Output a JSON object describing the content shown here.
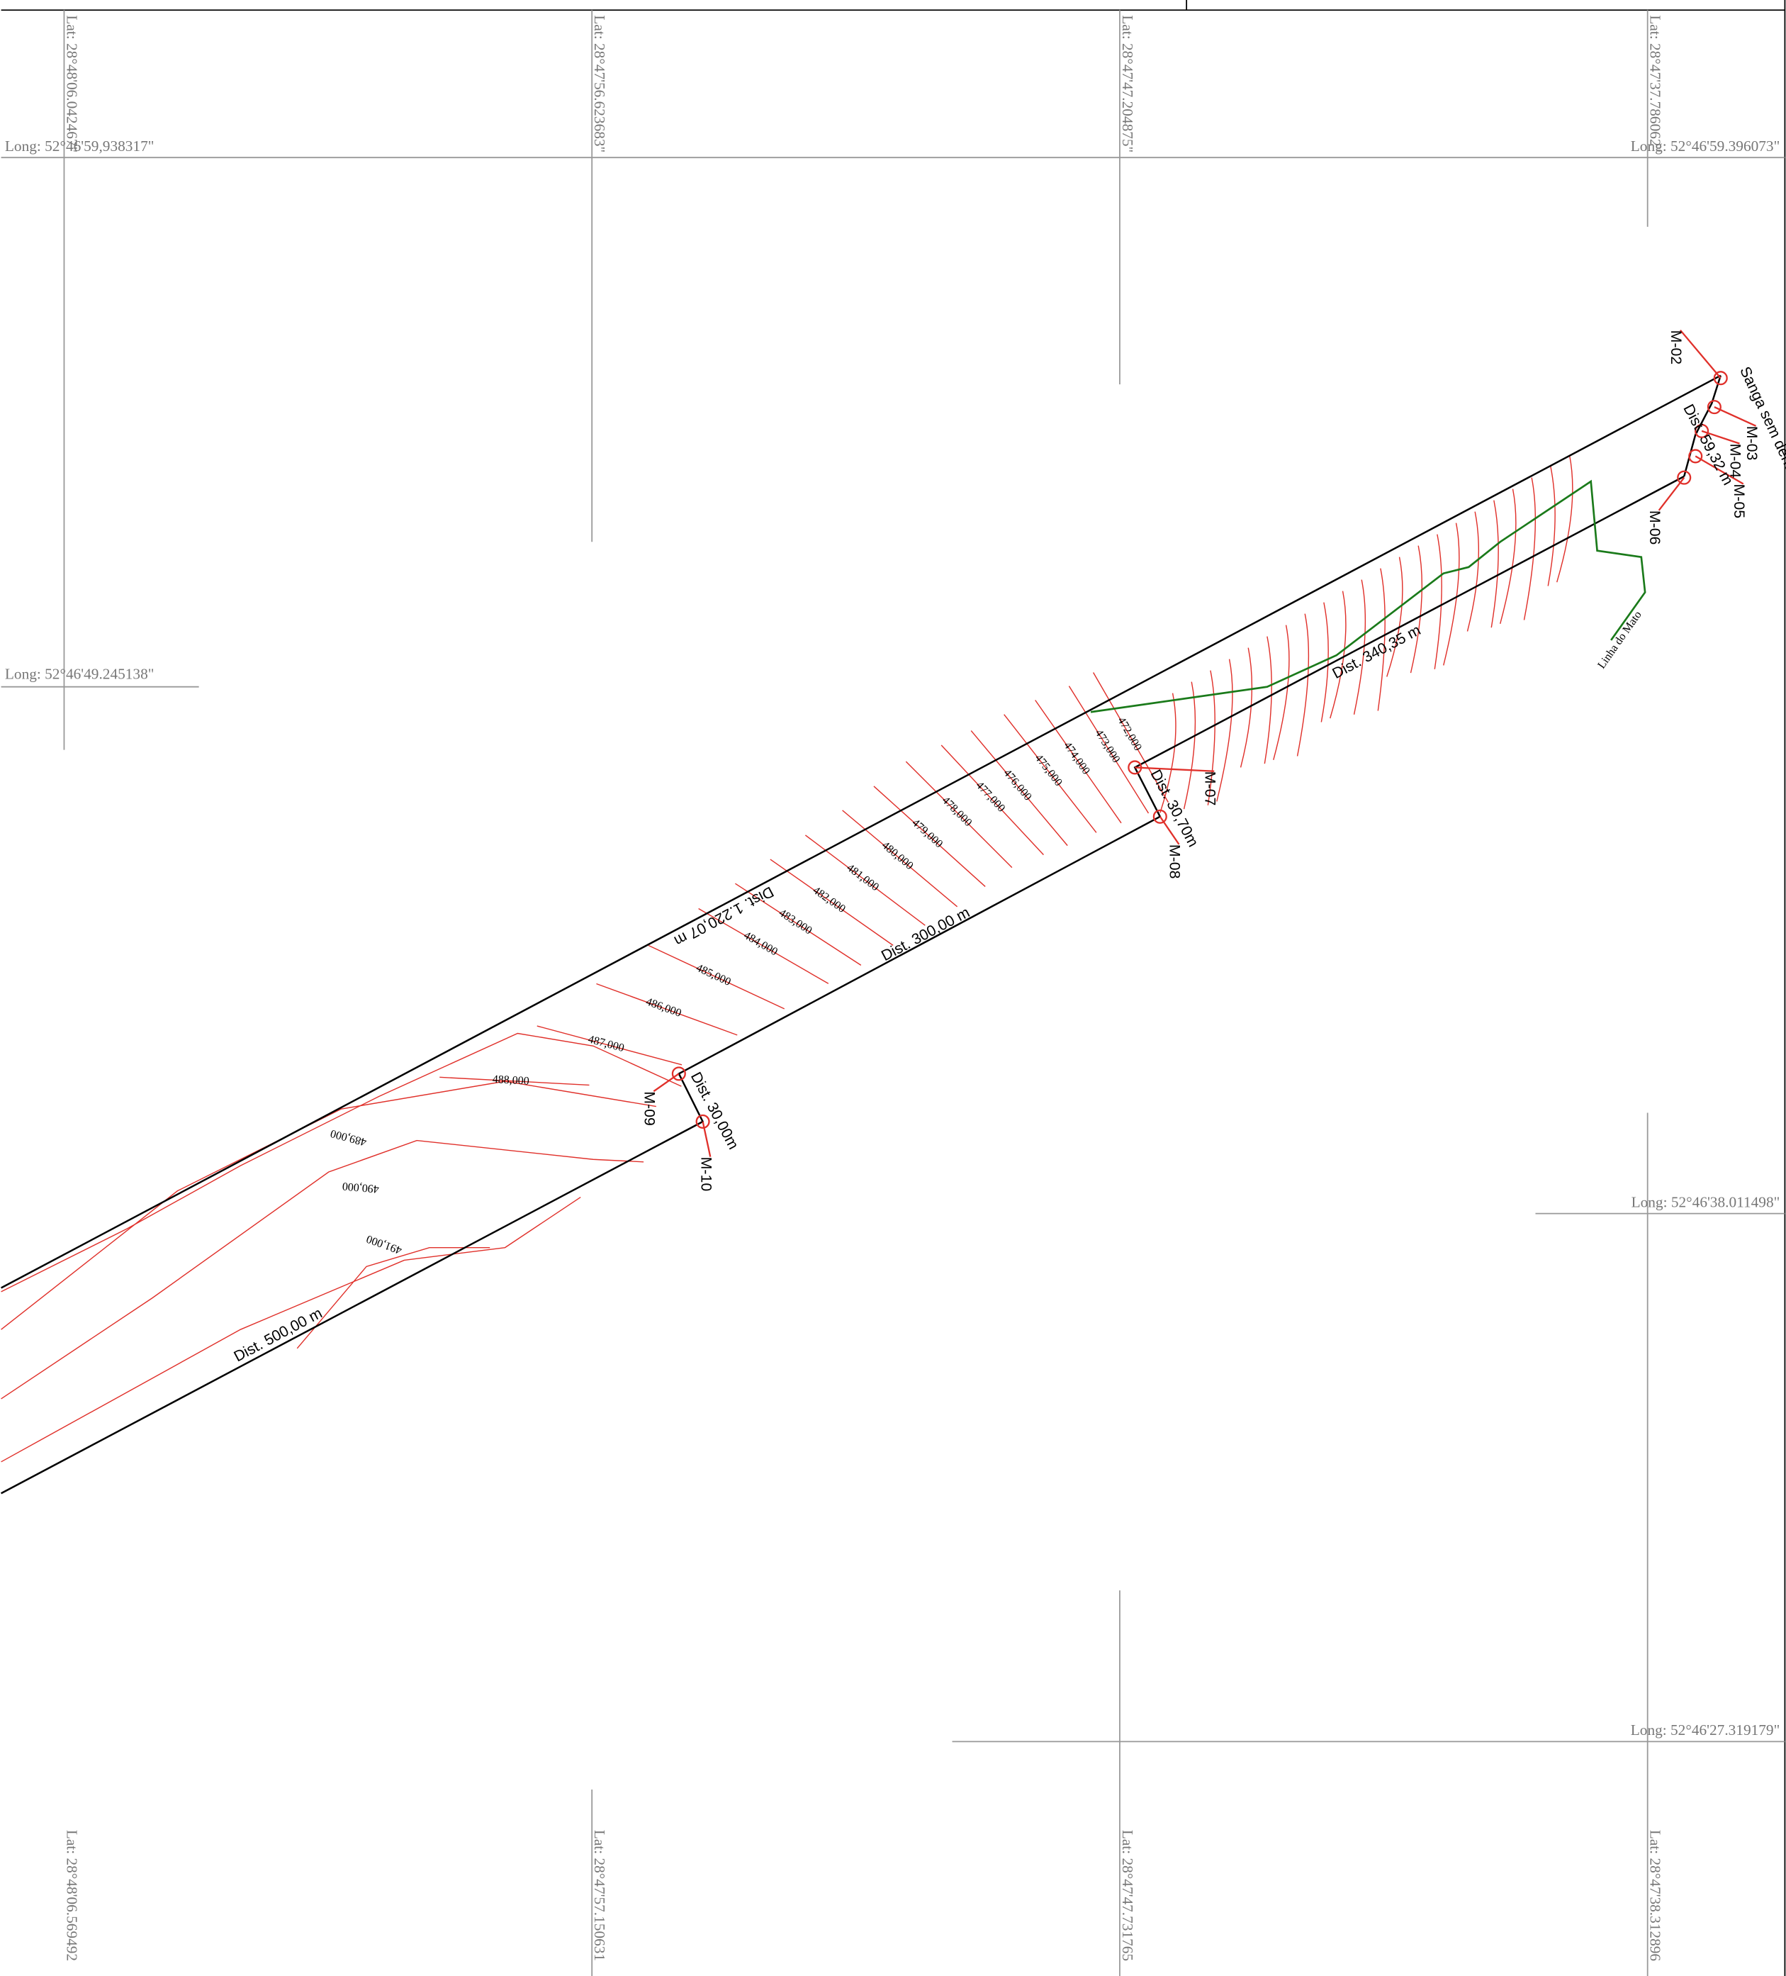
{
  "latitude_labels": {
    "top": [
      "Lat: 28°48'06.042467\"",
      "Lat: 28°47'56.623683\"",
      "Lat: 28°47'47.204875\"",
      "Lat: 28°47'37.786062\""
    ],
    "bottom": [
      "Lat: 28°48'06.569492",
      "Lat: 28°47'57.150631",
      "Lat: 28°47'47.731765",
      "Lat: 28°47'38.312896"
    ]
  },
  "longitude_labels": [
    "Long: 52°46'59,938317\"",
    "Long: 52°46'59.396073\"",
    "Long: 52°46'49.245138\"",
    "Long: 52°46'38.011498\"",
    "Long: 52°46'27.319179\""
  ],
  "markers": [
    "M-02",
    "M-03",
    "M-04",
    "M-05",
    "M-06",
    "M-07",
    "M-08",
    "M-09",
    "M-10"
  ],
  "distances": [
    "Dist. 59,32 m",
    "Dist. 340,35 m",
    "Dist. 30,70m",
    "Dist. 1.220,07 m",
    "Dist. 300,00 m",
    "Dist. 30,00m",
    "Dist. 500,00 m"
  ],
  "contours": [
    "472,000",
    "473,000",
    "474,000",
    "475,000",
    "476,000",
    "477,000",
    "478,000",
    "479,000",
    "480,000",
    "481,000",
    "482,000",
    "483,000",
    "484,000",
    "485,000",
    "486,000",
    "487,000",
    "488,000",
    "489,000",
    "490,000",
    "491,000"
  ],
  "streams": {
    "sanga": "Sanga sem denominação",
    "mato": "Linha do Mato"
  }
}
